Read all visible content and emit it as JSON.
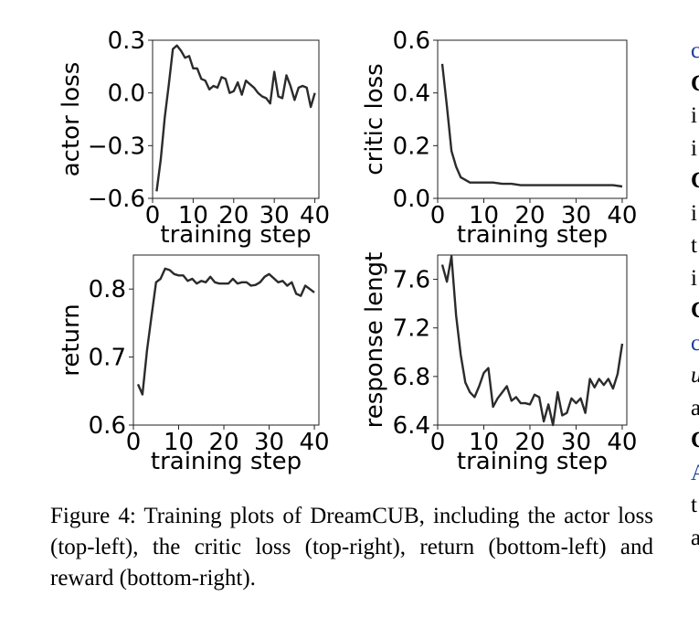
{
  "chart_data": [
    {
      "type": "line",
      "id": "actor",
      "ylabel": "actor loss",
      "xlabel": "training step",
      "xlim": [
        0,
        41
      ],
      "ylim": [
        -0.6,
        0.3
      ],
      "xticks": [
        0,
        10,
        20,
        30,
        40
      ],
      "yticks": [
        -0.6,
        -0.3,
        0.0,
        0.3
      ],
      "ytick_labels": [
        "−0.6",
        "−0.3",
        "0.0",
        "0.3"
      ],
      "xtick_labels": [
        "0",
        "10",
        "20",
        "30",
        "40"
      ],
      "series": [
        {
          "x": [
            1,
            2,
            3,
            4,
            5,
            6,
            7,
            8,
            9,
            10,
            11,
            12,
            13,
            14,
            15,
            16,
            17,
            18,
            19,
            20,
            21,
            22,
            23,
            24,
            25,
            26,
            27,
            28,
            29,
            30,
            31,
            32,
            33,
            34,
            35,
            36,
            37,
            38,
            39,
            40
          ],
          "y": [
            -0.56,
            -0.38,
            -0.14,
            0.05,
            0.25,
            0.27,
            0.24,
            0.2,
            0.21,
            0.14,
            0.14,
            0.08,
            0.07,
            0.02,
            0.04,
            0.03,
            0.09,
            0.08,
            0.0,
            0.01,
            0.06,
            -0.01,
            0.07,
            0.05,
            0.03,
            0.0,
            -0.02,
            -0.03,
            -0.06,
            0.12,
            -0.02,
            -0.03,
            0.1,
            0.04,
            -0.04,
            0.03,
            0.04,
            0.03,
            -0.08,
            0.0
          ]
        }
      ]
    },
    {
      "type": "line",
      "id": "critic",
      "ylabel": "critic loss",
      "xlabel": "training step",
      "xlim": [
        0,
        41
      ],
      "ylim": [
        0.0,
        0.6
      ],
      "xticks": [
        0,
        10,
        20,
        30,
        40
      ],
      "yticks": [
        0.0,
        0.2,
        0.4,
        0.6
      ],
      "ytick_labels": [
        "0.0",
        "0.2",
        "0.4",
        "0.6"
      ],
      "xtick_labels": [
        "0",
        "10",
        "20",
        "30",
        "40"
      ],
      "series": [
        {
          "x": [
            1,
            2,
            3,
            4,
            5,
            6,
            7,
            8,
            9,
            10,
            12,
            14,
            16,
            18,
            20,
            22,
            24,
            26,
            28,
            30,
            32,
            34,
            36,
            38,
            40
          ],
          "y": [
            0.51,
            0.35,
            0.18,
            0.12,
            0.08,
            0.07,
            0.06,
            0.06,
            0.06,
            0.06,
            0.06,
            0.055,
            0.055,
            0.05,
            0.05,
            0.05,
            0.05,
            0.05,
            0.05,
            0.05,
            0.05,
            0.05,
            0.05,
            0.05,
            0.045
          ]
        }
      ]
    },
    {
      "type": "line",
      "id": "return",
      "ylabel": "return",
      "xlabel": "training step",
      "xlim": [
        0,
        41
      ],
      "ylim": [
        0.6,
        0.85
      ],
      "xticks": [
        0,
        10,
        20,
        30,
        40
      ],
      "yticks": [
        0.6,
        0.7,
        0.8
      ],
      "ytick_labels": [
        "0.6",
        "0.7",
        "0.8"
      ],
      "xtick_labels": [
        "0",
        "10",
        "20",
        "30",
        "40"
      ],
      "series": [
        {
          "x": [
            1,
            2,
            3,
            4,
            5,
            6,
            7,
            8,
            9,
            10,
            11,
            12,
            13,
            14,
            15,
            16,
            17,
            18,
            19,
            20,
            21,
            22,
            23,
            24,
            25,
            26,
            27,
            28,
            29,
            30,
            31,
            32,
            33,
            34,
            35,
            36,
            37,
            38,
            39,
            40
          ],
          "y": [
            0.66,
            0.645,
            0.71,
            0.76,
            0.81,
            0.815,
            0.83,
            0.828,
            0.822,
            0.82,
            0.82,
            0.812,
            0.815,
            0.808,
            0.812,
            0.81,
            0.818,
            0.81,
            0.808,
            0.808,
            0.808,
            0.815,
            0.808,
            0.81,
            0.81,
            0.805,
            0.806,
            0.81,
            0.818,
            0.822,
            0.816,
            0.81,
            0.812,
            0.805,
            0.81,
            0.793,
            0.79,
            0.805,
            0.8,
            0.795
          ]
        }
      ]
    },
    {
      "type": "line",
      "id": "length",
      "ylabel": "response lengt",
      "xlabel": "training step",
      "xlim": [
        0,
        41
      ],
      "ylim": [
        6.4,
        7.8
      ],
      "xticks": [
        0,
        10,
        20,
        30,
        40
      ],
      "yticks": [
        6.4,
        6.8,
        7.2,
        7.6
      ],
      "ytick_labels": [
        "6.4",
        "6.8",
        "7.2",
        "7.6"
      ],
      "xtick_labels": [
        "0",
        "10",
        "20",
        "30",
        "40"
      ],
      "series": [
        {
          "x": [
            1,
            2,
            3,
            4,
            5,
            6,
            7,
            8,
            9,
            10,
            11,
            12,
            13,
            14,
            15,
            16,
            17,
            18,
            19,
            20,
            21,
            22,
            23,
            24,
            25,
            26,
            27,
            28,
            29,
            30,
            31,
            32,
            33,
            34,
            35,
            36,
            37,
            38,
            39,
            40
          ],
          "y": [
            7.72,
            7.58,
            7.79,
            7.3,
            6.98,
            6.75,
            6.67,
            6.63,
            6.72,
            6.83,
            6.87,
            6.55,
            6.62,
            6.67,
            6.72,
            6.6,
            6.63,
            6.58,
            6.58,
            6.57,
            6.65,
            6.63,
            6.43,
            6.57,
            6.4,
            6.67,
            6.48,
            6.5,
            6.62,
            6.58,
            6.62,
            6.5,
            6.78,
            6.71,
            6.78,
            6.73,
            6.78,
            6.7,
            6.82,
            7.07
          ]
        }
      ]
    }
  ],
  "caption": "Figure 4: Training plots of DreamCUB, including the actor loss (top-left), the critic loss (top-right), return (bottom-left) and reward (bottom-right).",
  "clipped_column": [
    {
      "text": "c",
      "style": "blue"
    },
    {
      "text": "C",
      "style": "bold"
    },
    {
      "text": "i",
      "style": ""
    },
    {
      "text": "i",
      "style": ""
    },
    {
      "text": "C",
      "style": "bold"
    },
    {
      "text": "i",
      "style": ""
    },
    {
      "text": "t",
      "style": ""
    },
    {
      "text": "i",
      "style": ""
    },
    {
      "text": "C",
      "style": "bold"
    },
    {
      "text": "c",
      "style": "blue"
    },
    {
      "text": "u",
      "style": "it"
    },
    {
      "text": "a",
      "style": ""
    },
    {
      "text": "C",
      "style": "bold"
    },
    {
      "text": "A",
      "style": "blue"
    },
    {
      "text": "t",
      "style": ""
    },
    {
      "text": "a",
      "style": ""
    }
  ]
}
